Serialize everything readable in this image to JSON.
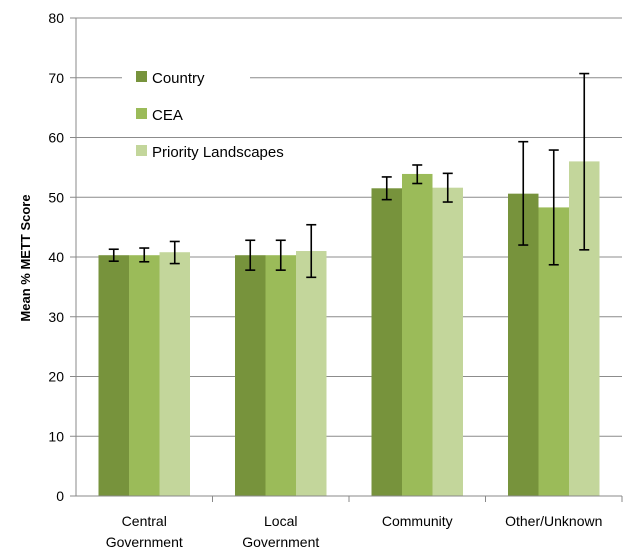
{
  "chart_data": {
    "type": "bar",
    "title": "",
    "xlabel": "",
    "ylabel": "Mean % METT Score",
    "ylim": [
      0,
      80
    ],
    "yticks": [
      0,
      10,
      20,
      30,
      40,
      50,
      60,
      70,
      80
    ],
    "grid": true,
    "legend_position": "top-left",
    "categories": [
      [
        "Central",
        "Government"
      ],
      [
        "Local",
        "Government"
      ],
      [
        "Community"
      ],
      [
        "Other/Unknown"
      ]
    ],
    "series": [
      {
        "name": "Country",
        "color": "#77933c",
        "values": [
          40.3,
          40.3,
          51.5,
          50.6
        ],
        "error_low": [
          39.3,
          37.8,
          49.6,
          42.0
        ],
        "error_high": [
          41.3,
          42.8,
          53.4,
          59.3
        ]
      },
      {
        "name": "CEA",
        "color": "#9bbb59",
        "values": [
          40.3,
          40.3,
          53.9,
          48.3
        ],
        "error_low": [
          39.2,
          37.8,
          52.3,
          38.7
        ],
        "error_high": [
          41.5,
          42.8,
          55.4,
          57.9
        ]
      },
      {
        "name": "Priority Landscapes",
        "color": "#c3d69b",
        "values": [
          40.8,
          41.0,
          51.6,
          56.0
        ],
        "error_low": [
          38.9,
          36.6,
          49.2,
          41.2
        ],
        "error_high": [
          42.6,
          45.4,
          54.0,
          70.7
        ]
      }
    ]
  }
}
